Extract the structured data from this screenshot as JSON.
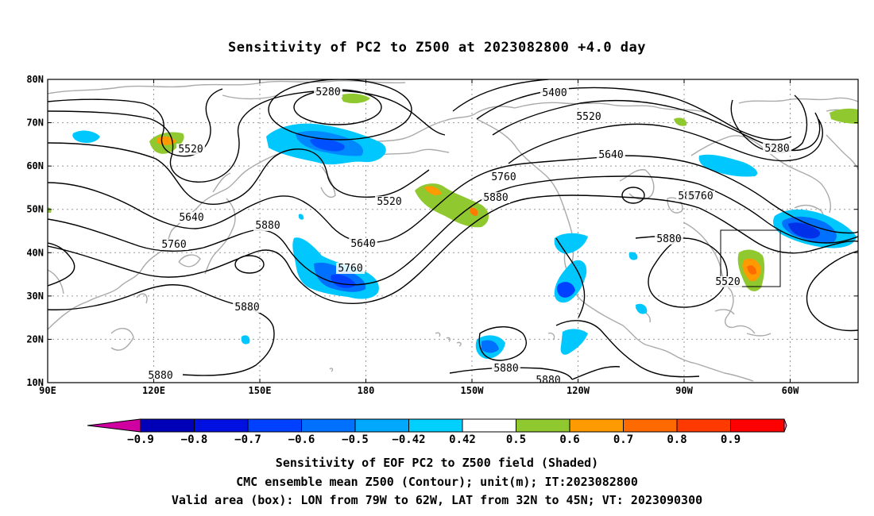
{
  "title": "Sensitivity of PC2 to Z500 at 2023082800 +4.0 day",
  "map": {
    "lat_labels": [
      "80N",
      "70N",
      "60N",
      "50N",
      "40N",
      "30N",
      "20N",
      "10N"
    ],
    "lon_labels": [
      "90E",
      "120E",
      "150E",
      "180",
      "150W",
      "120W",
      "90W",
      "60W"
    ],
    "contour_labels": [
      "5280",
      "5400",
      "5520",
      "5520",
      "5280",
      "5520",
      "5640",
      "5760",
      "5640",
      "5880",
      "5880",
      "5760",
      "5640",
      "5760",
      "5880",
      "5880",
      "5880",
      "5880",
      "5880",
      "5880",
      "5520",
      "5760"
    ],
    "valid_box": {
      "lon_west": "79W",
      "lon_east": "62W",
      "lat_south": "32N",
      "lat_north": "45N"
    }
  },
  "colorbar": {
    "ticks": [
      "-0.9",
      "-0.8",
      "-0.7",
      "-0.6",
      "-0.5",
      "-0.42",
      "0.42",
      "0.5",
      "0.6",
      "0.7",
      "0.8",
      "0.9"
    ],
    "colors": [
      "#d000a0",
      "#0000b8",
      "#0010e0",
      "#0040ff",
      "#0070ff",
      "#00a8ff",
      "#00d0ff",
      "#ffffff",
      "#90c830",
      "#ff9a00",
      "#ff6a00",
      "#ff3a00",
      "#ff0000",
      "#ff9ac8"
    ]
  },
  "captions": {
    "line1": "Sensitivity of EOF PC2 to Z500 field (Shaded)",
    "line2": "CMC ensemble mean Z500 (Contour); unit(m); IT:2023082800",
    "line3": "Valid area (box): LON from 79W to 62W, LAT from 32N to 45N; VT: 2023090300"
  }
}
